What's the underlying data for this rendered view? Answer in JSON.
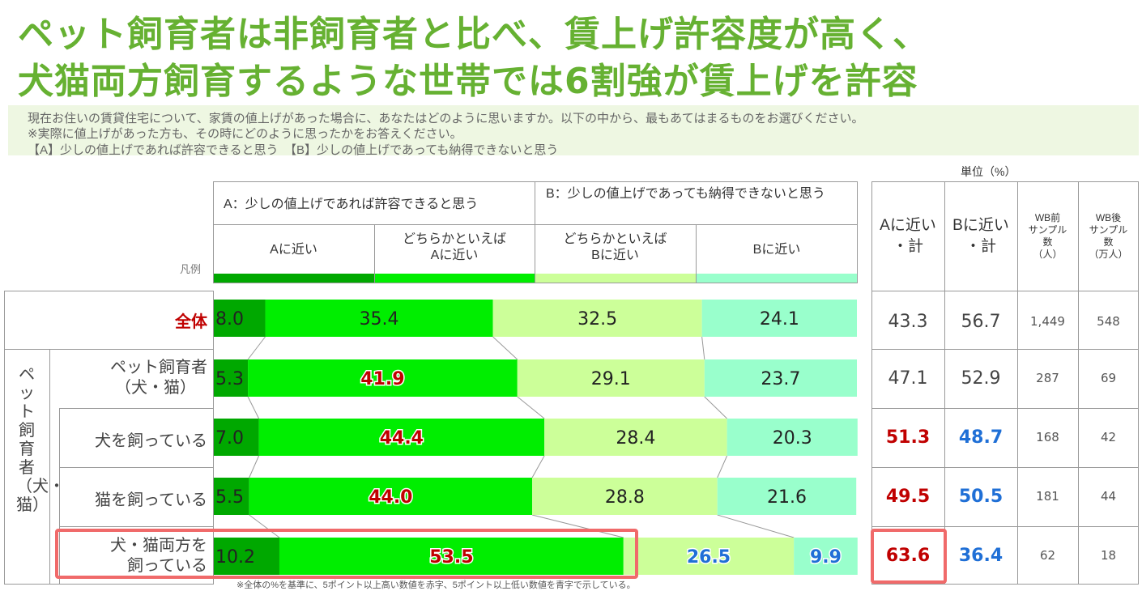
{
  "title": {
    "line1": "ペット飼育者は非飼育者と比べ、賃上げ許容度が高く、",
    "line2": "犬猫両方飼育するような世帯では6割強が賃上げを許容"
  },
  "question": {
    "line1": "現在お住いの賃貸住宅について、家賃の値上げがあった場合に、あなたはどのように思いますか。以下の中から、最もあてはまるものをお選びください。",
    "line2": "※実際に値上げがあった方も、その時にどのように思ったかをお答えください。",
    "line3": "【A】少しの値上げであれば許容できると思う　【B】少しの値上げであっても納得できないと思う"
  },
  "unit_label": "単位（%）",
  "legend_label": "凡例",
  "header": {
    "group_a": "A：少しの値上げであれば許容できると思う",
    "group_b": "B：少しの値上げであっても納得できないと思う",
    "col_a": "Aに近い",
    "col_a2_1": "どちらかといえば",
    "col_a2_2": "Aに近い",
    "col_b2_1": "どちらかといえば",
    "col_b2_2": "Bに近い",
    "col_b": "Bに近い",
    "sum_a_1": "Aに近い",
    "sum_a_2": "・計",
    "sum_b_1": "Bに近い",
    "sum_b_2": "・計",
    "wb_pre": [
      "WB前",
      "サンプル",
      "数",
      "（人）"
    ],
    "wb_post": [
      "WB後",
      "サンプル",
      "数",
      "（万人）"
    ]
  },
  "side_label": "ペット飼育者（犬・猫）",
  "rows": [
    {
      "label": [
        "全体"
      ],
      "sum_a": "43.3",
      "sum_b": "56.7",
      "wb_pre": "1,449",
      "wb_post": "548"
    },
    {
      "label": [
        "ペット飼育者",
        "（犬・猫）"
      ],
      "sum_a": "47.1",
      "sum_b": "52.9",
      "wb_pre": "287",
      "wb_post": "69"
    },
    {
      "label": [
        "犬を飼っている"
      ],
      "sum_a": "51.3",
      "sum_b": "48.7",
      "wb_pre": "168",
      "wb_post": "42"
    },
    {
      "label": [
        "猫を飼っている"
      ],
      "sum_a": "49.5",
      "sum_b": "50.5",
      "wb_pre": "181",
      "wb_post": "44"
    },
    {
      "label": [
        "犬・猫両方を",
        "飼っている"
      ],
      "sum_a": "63.6",
      "sum_b": "36.4",
      "wb_pre": "62",
      "wb_post": "18"
    }
  ],
  "footnote": "※全体の%を基準に、5ポイント以上高い数値を赤字、5ポイント以上低い数値を青字で示している。",
  "colors": {
    "title_green": "#66b132",
    "seg_a": "#00a800",
    "seg_a2": "#00ee00",
    "seg_b2": "#ccff99",
    "seg_b": "#99ffcc",
    "highlight_red": "#c00000",
    "highlight_blue": "#1f6fd6",
    "callout_border": "#f06a6a"
  },
  "chart_data": {
    "type": "bar",
    "orientation": "horizontal",
    "stacked": true,
    "unit": "%",
    "categories": [
      "全体",
      "ペット飼育者（犬・猫）",
      "犬を飼っている",
      "猫を飼っている",
      "犬・猫両方を飼っている"
    ],
    "series": [
      {
        "name": "Aに近い",
        "color": "#00a800",
        "values": [
          8.0,
          5.3,
          7.0,
          5.5,
          10.2
        ],
        "label_style": [
          "normal",
          "normal",
          "normal",
          "normal",
          "normal"
        ]
      },
      {
        "name": "どちらかといえばAに近い",
        "color": "#00ee00",
        "values": [
          35.4,
          41.9,
          44.4,
          44.0,
          53.5
        ],
        "label_style": [
          "normal",
          "red",
          "red",
          "red",
          "red"
        ]
      },
      {
        "name": "どちらかといえばBに近い",
        "color": "#ccff99",
        "values": [
          32.5,
          29.1,
          28.4,
          28.8,
          26.5
        ],
        "label_style": [
          "normal",
          "normal",
          "normal",
          "normal",
          "blue"
        ]
      },
      {
        "name": "Bに近い",
        "color": "#99ffcc",
        "values": [
          24.1,
          23.7,
          20.3,
          21.6,
          9.9
        ],
        "label_style": [
          "normal",
          "normal",
          "normal",
          "normal",
          "blue"
        ]
      }
    ],
    "sum_a": [
      43.3,
      47.1,
      51.3,
      49.5,
      63.6
    ],
    "sum_b": [
      56.7,
      52.9,
      48.7,
      50.5,
      36.4
    ],
    "sum_a_style": [
      "normal",
      "normal",
      "red",
      "red",
      "red"
    ],
    "sum_b_style": [
      "normal",
      "normal",
      "blue",
      "blue",
      "blue"
    ],
    "xlim": [
      0,
      100
    ]
  }
}
